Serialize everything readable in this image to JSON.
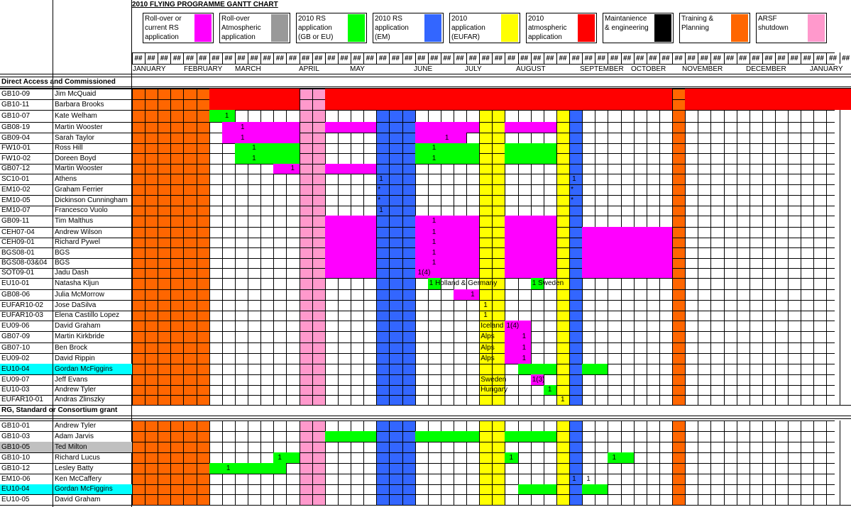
{
  "title": "2010 FLYING PROGRAMME GANTT CHART",
  "legend": [
    {
      "label": "Roll-over or\ncurrent RS\napplication",
      "color": "#ff00ff"
    },
    {
      "label": "Roll-over\nAtmospheric\napplication",
      "color": "#999999"
    },
    {
      "label": "2010 RS\napplication\n(GB or EU)",
      "color": "#00ff00"
    },
    {
      "label": "2010 RS\napplication\n(EM)",
      "color": "#3366ff"
    },
    {
      "label": "2010\napplication\n(EUFAR)",
      "color": "#ffff00"
    },
    {
      "label": "2010\natmospheric\napplication",
      "color": "#ff0000"
    },
    {
      "label": "Maintanience\n& engineering",
      "color": "#000000"
    },
    {
      "label": "Training &\nPlanning",
      "color": "#ff6600"
    },
    {
      "label": "ARSF\nshutdown",
      "color": "#ff99cc"
    }
  ],
  "week_header_text": "##",
  "months": [
    "JANUARY",
    "FEBRUARY",
    "MARCH",
    "APRIL",
    "MAY",
    "JUNE",
    "JULY",
    "AUGUST",
    "SEPTEMBER",
    "OCTOBER",
    "NOVEMBER",
    "DECEMBER",
    "JANUARY"
  ],
  "sections": {
    "direct": "Direct Access and Commissioned",
    "grant": "RG, Standard or Consortium grant"
  },
  "rows_direct": [
    {
      "code": "GB10-09",
      "name": "Jim McQuaid"
    },
    {
      "code": "GB10-11",
      "name": "Barbara Brooks"
    },
    {
      "code": "GB10-07",
      "name": "Kate Welham"
    },
    {
      "code": "GB08-19",
      "name": "Martin Wooster"
    },
    {
      "code": "GB09-04",
      "name": "Sarah Taylor"
    },
    {
      "code": "FW10-01",
      "name": "Ross Hill"
    },
    {
      "code": "FW10-02",
      "name": "Doreen Boyd"
    },
    {
      "code": "GB07-12",
      "name": "Martin Wooster"
    },
    {
      "code": "SC10-01",
      "name": "Athens"
    },
    {
      "code": "EM10-02",
      "name": "Graham Ferrier"
    },
    {
      "code": "EM10-05",
      "name": "Dickinson Cunningham"
    },
    {
      "code": "EM10-07",
      "name": "Francesco Vuolo"
    },
    {
      "code": "GB09-11",
      "name": "Tim Malthus"
    },
    {
      "code": "CEH07-04",
      "name": "Andrew Wilson"
    },
    {
      "code": "CEH09-01",
      "name": "Richard Pywel"
    },
    {
      "code": "BGS08-01",
      "name": "BGS"
    },
    {
      "code": "BGS08-03&04",
      "name": "BGS"
    },
    {
      "code": "SOT09-01",
      "name": "Jadu Dash"
    },
    {
      "code": "EU10-01",
      "name": "Natasha Kljun"
    },
    {
      "code": "GB08-06",
      "name": "Julia McMorrow"
    },
    {
      "code": "EUFAR10-02",
      "name": "Jose DaSilva"
    },
    {
      "code": "EUFAR10-03",
      "name": "Elena Castillo Lopez"
    },
    {
      "code": "EU09-06",
      "name": "David Graham"
    },
    {
      "code": "GB07-09",
      "name": "Martin Kirkbride"
    },
    {
      "code": "GB07-10",
      "name": "Ben Brock"
    },
    {
      "code": "EU09-02",
      "name": "David Rippin"
    },
    {
      "code": "EU10-04",
      "name": "Gordan McFiggins",
      "highlight": "cyan"
    },
    {
      "code": "EU09-07",
      "name": "Jeff Evans"
    },
    {
      "code": "EU10-03",
      "name": "Andrew Tyler"
    },
    {
      "code": "EUFAR10-01",
      "name": "Andras Zlinszky"
    }
  ],
  "rows_grant": [
    {
      "code": "GB10-01",
      "name": "Andrew Tyler"
    },
    {
      "code": "GB10-03",
      "name": "Adam Jarvis"
    },
    {
      "code": "GB10-05",
      "name": "Ted Milton",
      "highlight": "grey"
    },
    {
      "code": "GB10-10",
      "name": "Richard Lucus"
    },
    {
      "code": "GB10-12",
      "name": "Lesley Batty"
    },
    {
      "code": "EM10-06",
      "name": "Ken McCaffery"
    },
    {
      "code": "EU10-04",
      "name": "Gordan McFiggins",
      "highlight": "cyan"
    },
    {
      "code": "EU10-05",
      "name": "David Graham"
    }
  ],
  "cell_labels": {
    "one": "1",
    "star": "*",
    "one_four": "1(4)",
    "one_three": "1(3)",
    "holland_germany": "1 Holland & Germany",
    "sweden_1": "1 Sweden",
    "iceland": "Iceland",
    "iceland_count": "1(4)",
    "alps": "Alps",
    "sweden": "Sweden",
    "hungary": "Hungary"
  }
}
